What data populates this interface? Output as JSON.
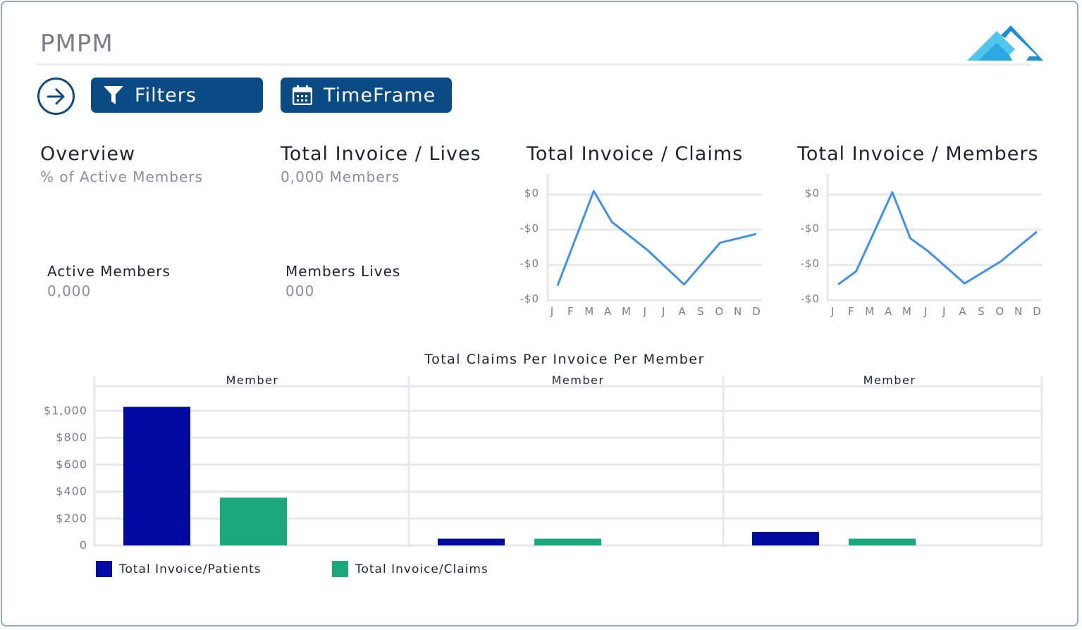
{
  "app": {
    "title": "PMPM"
  },
  "toolbar": {
    "filters_label": "Filters",
    "timeframe_label": "TimeFrame"
  },
  "overview": {
    "title": "Overview",
    "subtitle": "% of Active Members",
    "metric_label": "Active Members",
    "metric_value": "0,000"
  },
  "lives": {
    "title": "Total Invoice / Lives",
    "subtitle": "0,000 Members",
    "metric_label": "Members Lives",
    "metric_value": "000"
  },
  "colors": {
    "primary": "#0a4a85",
    "patients": "#0009a0",
    "claims": "#1aa87c",
    "line": "#3f92e5",
    "logo_light": "#4fc6ea",
    "logo_dark": "#1a8fd6"
  },
  "chart_data": [
    {
      "type": "line",
      "title": "Total Invoice / Claims",
      "categories": [
        "J",
        "F",
        "M",
        "A",
        "M",
        "J",
        "J",
        "A",
        "S",
        "O",
        "N",
        "D"
      ],
      "y_tick_labels": [
        "$0",
        "-$0",
        "-$0",
        "-$0"
      ],
      "series": [
        {
          "values": [
            0.12,
            null,
            0.98,
            0.7,
            null,
            0.44,
            null,
            0.13,
            null,
            0.51,
            null,
            0.59
          ]
        }
      ],
      "ylim": [
        0,
        1
      ],
      "grid": true
    },
    {
      "type": "line",
      "title": "Total Invoice / Members",
      "categories": [
        "J",
        "F",
        "M",
        "A",
        "M",
        "J",
        "J",
        "A",
        "S",
        "O",
        "N",
        "D"
      ],
      "y_tick_labels": [
        "$0",
        "-$0",
        "-$0",
        "-$0"
      ],
      "series": [
        {
          "values": [
            0.13,
            0.25,
            null,
            0.97,
            0.55,
            0.43,
            null,
            0.14,
            null,
            0.34,
            null,
            0.61
          ]
        }
      ],
      "ylim": [
        0,
        1
      ],
      "grid": true
    },
    {
      "type": "bar",
      "title": "Total Claims Per Invoice Per Member",
      "categories": [
        "Member",
        "Member",
        "Member"
      ],
      "y_tick_labels": [
        "0",
        "$200",
        "$400",
        "$600",
        "$800",
        "$1,000"
      ],
      "ylim": [
        0,
        1000
      ],
      "series": [
        {
          "name": "Total Invoice/Patients",
          "values": [
            1030,
            50,
            100
          ]
        },
        {
          "name": "Total Invoice/Claims",
          "values": [
            355,
            50,
            50
          ]
        }
      ],
      "legend": "bottom-left",
      "grid": true
    }
  ]
}
